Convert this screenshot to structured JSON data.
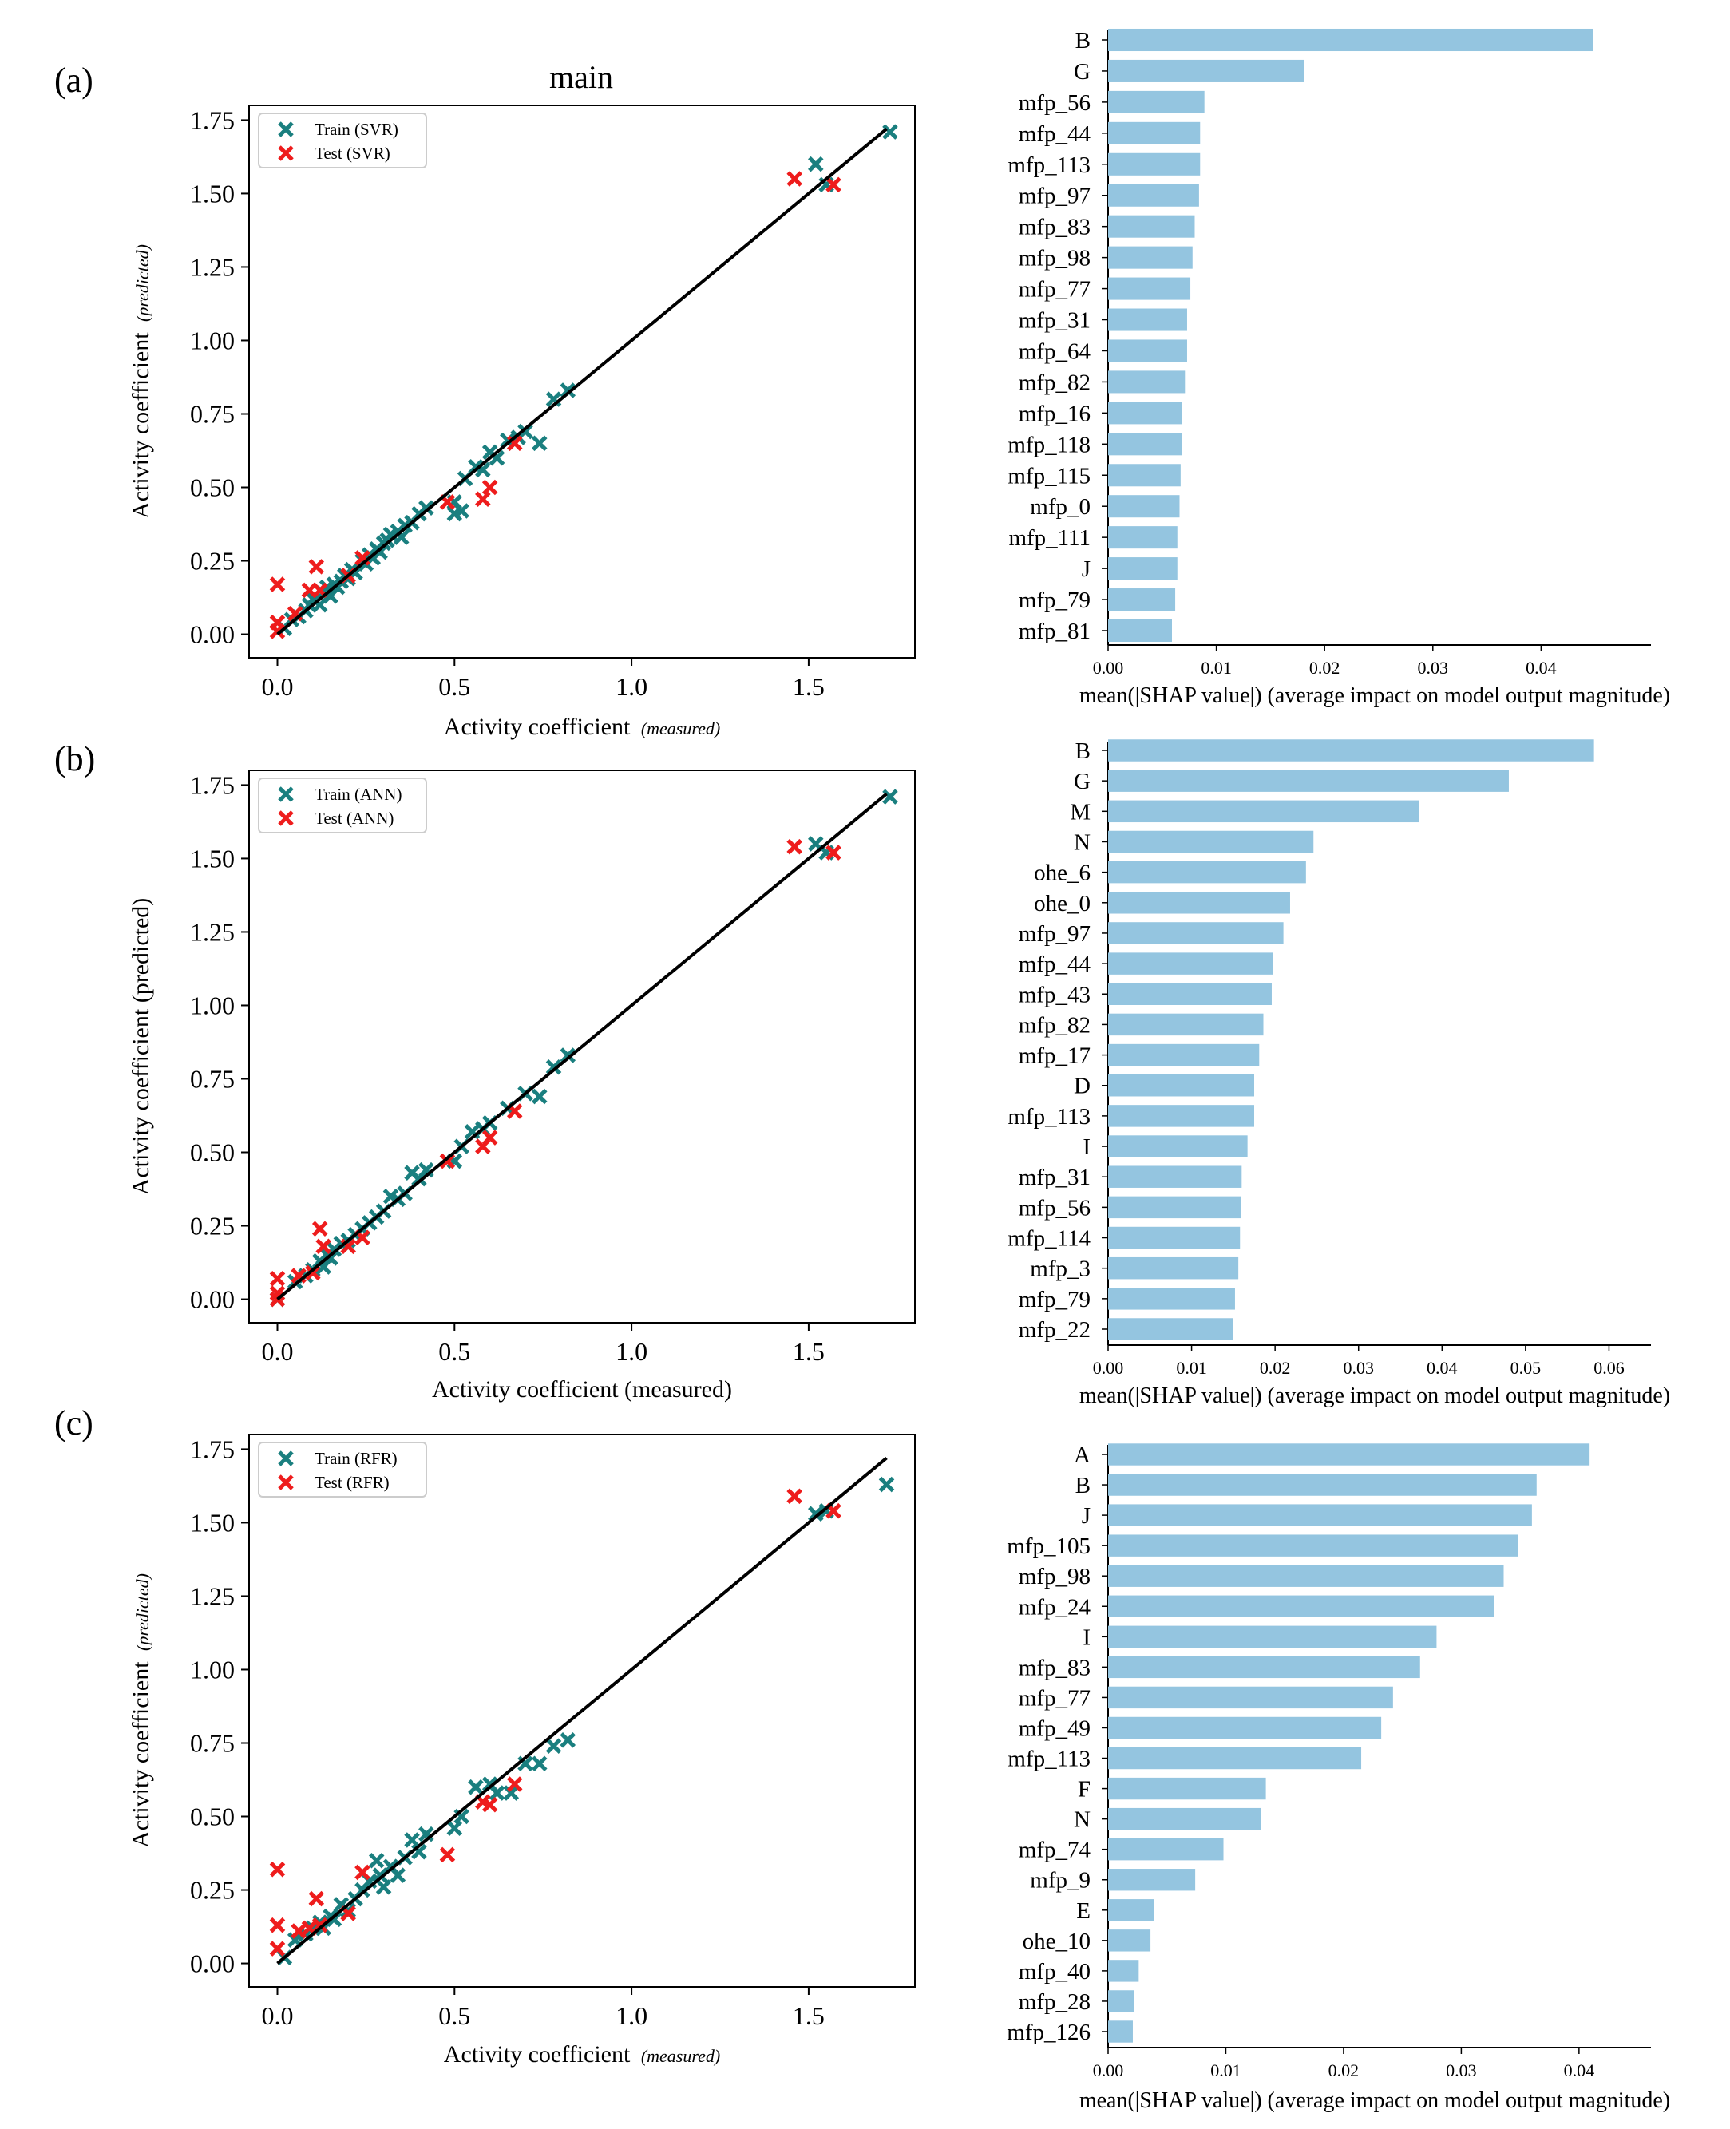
{
  "panel_labels": [
    "(a)",
    "(b)",
    "(c)"
  ],
  "colors": {
    "train": "#1a7f7f",
    "test": "#ee1c1c",
    "bar": "#94c5e0",
    "fit_line": "#000000"
  },
  "chart_data": [
    {
      "type": "scatter",
      "panel": "(a)",
      "title": "main",
      "xlabel": "Activity coefficient",
      "xlabel_sub": "(measured)",
      "ylabel": "Activity coefficient",
      "ylabel_sub": "(predicted)",
      "sub_italic": true,
      "xlim": [
        -0.08,
        1.8
      ],
      "ylim": [
        -0.08,
        1.8
      ],
      "xticks": [
        "0.0",
        "0.5",
        "1.0",
        "1.5"
      ],
      "yticks": [
        "0.00",
        "0.25",
        "0.50",
        "0.75",
        "1.00",
        "1.25",
        "1.50",
        "1.75"
      ],
      "legend_position": "top-left",
      "line": [
        [
          0,
          0
        ],
        [
          1.72,
          1.72
        ]
      ],
      "series": [
        {
          "name": "Train (SVR)",
          "role": "train",
          "points": [
            [
              0.02,
              0.02
            ],
            [
              0.04,
              0.05
            ],
            [
              0.06,
              0.06
            ],
            [
              0.08,
              0.08
            ],
            [
              0.09,
              0.1
            ],
            [
              0.1,
              0.12
            ],
            [
              0.12,
              0.1
            ],
            [
              0.13,
              0.14
            ],
            [
              0.14,
              0.16
            ],
            [
              0.15,
              0.13
            ],
            [
              0.16,
              0.17
            ],
            [
              0.17,
              0.16
            ],
            [
              0.18,
              0.18
            ],
            [
              0.19,
              0.2
            ],
            [
              0.2,
              0.19
            ],
            [
              0.21,
              0.22
            ],
            [
              0.22,
              0.21
            ],
            [
              0.24,
              0.25
            ],
            [
              0.25,
              0.24
            ],
            [
              0.26,
              0.27
            ],
            [
              0.27,
              0.26
            ],
            [
              0.28,
              0.29
            ],
            [
              0.29,
              0.28
            ],
            [
              0.3,
              0.31
            ],
            [
              0.31,
              0.32
            ],
            [
              0.32,
              0.34
            ],
            [
              0.34,
              0.35
            ],
            [
              0.35,
              0.33
            ],
            [
              0.36,
              0.37
            ],
            [
              0.38,
              0.38
            ],
            [
              0.4,
              0.41
            ],
            [
              0.42,
              0.43
            ],
            [
              0.5,
              0.41
            ],
            [
              0.52,
              0.42
            ],
            [
              0.5,
              0.45
            ],
            [
              0.53,
              0.53
            ],
            [
              0.56,
              0.57
            ],
            [
              0.58,
              0.56
            ],
            [
              0.6,
              0.62
            ],
            [
              0.62,
              0.6
            ],
            [
              0.65,
              0.66
            ],
            [
              0.68,
              0.67
            ],
            [
              0.7,
              0.69
            ],
            [
              0.74,
              0.65
            ],
            [
              0.78,
              0.8
            ],
            [
              0.82,
              0.83
            ],
            [
              1.52,
              1.6
            ],
            [
              1.55,
              1.53
            ],
            [
              1.73,
              1.71
            ]
          ]
        },
        {
          "name": "Test (SVR)",
          "role": "test",
          "points": [
            [
              0.0,
              0.17
            ],
            [
              0.0,
              0.04
            ],
            [
              0.0,
              0.01
            ],
            [
              0.05,
              0.07
            ],
            [
              0.09,
              0.15
            ],
            [
              0.11,
              0.23
            ],
            [
              0.12,
              0.15
            ],
            [
              0.2,
              0.2
            ],
            [
              0.24,
              0.26
            ],
            [
              0.48,
              0.45
            ],
            [
              0.58,
              0.46
            ],
            [
              0.6,
              0.5
            ],
            [
              0.67,
              0.65
            ],
            [
              1.46,
              1.55
            ],
            [
              1.57,
              1.53
            ]
          ]
        }
      ]
    },
    {
      "type": "bar",
      "orientation": "horizontal",
      "panel": "(a)",
      "categories": [
        "B",
        "G",
        "mfp_56",
        "mfp_44",
        "mfp_113",
        "mfp_97",
        "mfp_83",
        "mfp_98",
        "mfp_77",
        "mfp_31",
        "mfp_64",
        "mfp_82",
        "mfp_16",
        "mfp_118",
        "mfp_115",
        "mfp_0",
        "mfp_111",
        "J",
        "mfp_79",
        "mfp_81"
      ],
      "values": [
        0.0448,
        0.0181,
        0.0089,
        0.0085,
        0.0085,
        0.0084,
        0.008,
        0.0078,
        0.0076,
        0.0073,
        0.0073,
        0.0071,
        0.0068,
        0.0068,
        0.0067,
        0.0066,
        0.0064,
        0.0064,
        0.0062,
        0.0059
      ],
      "xlabel": "mean(|SHAP value|) (average impact on model output magnitude)",
      "xticks": [
        "0.00",
        "0.01",
        "0.02",
        "0.03",
        "0.04"
      ],
      "xlim": [
        0,
        0.0472
      ]
    },
    {
      "type": "scatter",
      "panel": "(b)",
      "title": "",
      "xlabel": "Activity coefficient (measured)",
      "xlabel_sub": "",
      "ylabel": "Activity coefficient (predicted)",
      "ylabel_sub": "",
      "sub_italic": false,
      "xlim": [
        -0.08,
        1.8
      ],
      "ylim": [
        -0.08,
        1.8
      ],
      "xticks": [
        "0.0",
        "0.5",
        "1.0",
        "1.5"
      ],
      "yticks": [
        "0.00",
        "0.25",
        "0.50",
        "0.75",
        "1.00",
        "1.25",
        "1.50",
        "1.75"
      ],
      "legend_position": "top-left",
      "line": [
        [
          0,
          0
        ],
        [
          1.72,
          1.72
        ]
      ],
      "series": [
        {
          "name": "Train (ANN)",
          "role": "train",
          "points": [
            [
              0.0,
              0.0
            ],
            [
              0.05,
              0.06
            ],
            [
              0.08,
              0.08
            ],
            [
              0.1,
              0.1
            ],
            [
              0.12,
              0.13
            ],
            [
              0.13,
              0.11
            ],
            [
              0.14,
              0.15
            ],
            [
              0.15,
              0.14
            ],
            [
              0.16,
              0.17
            ],
            [
              0.18,
              0.19
            ],
            [
              0.2,
              0.2
            ],
            [
              0.22,
              0.22
            ],
            [
              0.24,
              0.24
            ],
            [
              0.26,
              0.26
            ],
            [
              0.28,
              0.28
            ],
            [
              0.3,
              0.3
            ],
            [
              0.32,
              0.35
            ],
            [
              0.34,
              0.34
            ],
            [
              0.36,
              0.36
            ],
            [
              0.38,
              0.43
            ],
            [
              0.4,
              0.41
            ],
            [
              0.42,
              0.44
            ],
            [
              0.5,
              0.47
            ],
            [
              0.52,
              0.52
            ],
            [
              0.55,
              0.57
            ],
            [
              0.58,
              0.58
            ],
            [
              0.6,
              0.6
            ],
            [
              0.65,
              0.65
            ],
            [
              0.7,
              0.7
            ],
            [
              0.74,
              0.69
            ],
            [
              0.78,
              0.79
            ],
            [
              0.82,
              0.83
            ],
            [
              1.52,
              1.55
            ],
            [
              1.55,
              1.52
            ],
            [
              1.73,
              1.71
            ]
          ]
        },
        {
          "name": "Test (ANN)",
          "role": "test",
          "points": [
            [
              0.0,
              0.07
            ],
            [
              0.0,
              0.02
            ],
            [
              0.0,
              0.0
            ],
            [
              0.06,
              0.08
            ],
            [
              0.1,
              0.09
            ],
            [
              0.12,
              0.24
            ],
            [
              0.13,
              0.18
            ],
            [
              0.2,
              0.18
            ],
            [
              0.24,
              0.21
            ],
            [
              0.48,
              0.47
            ],
            [
              0.58,
              0.52
            ],
            [
              0.6,
              0.55
            ],
            [
              0.67,
              0.64
            ],
            [
              1.46,
              1.54
            ],
            [
              1.57,
              1.52
            ]
          ]
        }
      ]
    },
    {
      "type": "bar",
      "orientation": "horizontal",
      "panel": "(b)",
      "categories": [
        "B",
        "G",
        "M",
        "N",
        "ohe_6",
        "ohe_0",
        "mfp_97",
        "mfp_44",
        "mfp_43",
        "mfp_82",
        "mfp_17",
        "D",
        "mfp_113",
        "I",
        "mfp_31",
        "mfp_56",
        "mfp_114",
        "mfp_3",
        "mfp_79",
        "mfp_22"
      ],
      "values": [
        0.0582,
        0.048,
        0.0372,
        0.0246,
        0.0237,
        0.0218,
        0.021,
        0.0197,
        0.0196,
        0.0186,
        0.0181,
        0.0175,
        0.0175,
        0.0167,
        0.016,
        0.0159,
        0.0158,
        0.0156,
        0.0152,
        0.015
      ],
      "xlabel": "mean(|SHAP value|) (average impact on model output magnitude)",
      "xticks": [
        "0.00",
        "0.01",
        "0.02",
        "0.03",
        "0.04",
        "0.05",
        "0.06"
      ],
      "xlim": [
        0,
        0.0612
      ]
    },
    {
      "type": "scatter",
      "panel": "(c)",
      "title": "",
      "xlabel": "Activity coefficient",
      "xlabel_sub": "(measured)",
      "ylabel": "Activity coefficient",
      "ylabel_sub": "(predicted)",
      "sub_italic": true,
      "xlim": [
        -0.08,
        1.8
      ],
      "ylim": [
        -0.08,
        1.8
      ],
      "xticks": [
        "0.0",
        "0.5",
        "1.0",
        "1.5"
      ],
      "yticks": [
        "0.00",
        "0.25",
        "0.50",
        "0.75",
        "1.00",
        "1.25",
        "1.50",
        "1.75"
      ],
      "legend_position": "top-left",
      "line": [
        [
          0,
          0
        ],
        [
          1.72,
          1.72
        ]
      ],
      "series": [
        {
          "name": "Train (RFR)",
          "role": "train",
          "points": [
            [
              0.02,
              0.02
            ],
            [
              0.05,
              0.08
            ],
            [
              0.08,
              0.1
            ],
            [
              0.1,
              0.12
            ],
            [
              0.12,
              0.14
            ],
            [
              0.13,
              0.12
            ],
            [
              0.15,
              0.16
            ],
            [
              0.16,
              0.15
            ],
            [
              0.18,
              0.2
            ],
            [
              0.2,
              0.18
            ],
            [
              0.22,
              0.22
            ],
            [
              0.24,
              0.25
            ],
            [
              0.26,
              0.28
            ],
            [
              0.28,
              0.35
            ],
            [
              0.29,
              0.3
            ],
            [
              0.3,
              0.26
            ],
            [
              0.32,
              0.33
            ],
            [
              0.34,
              0.3
            ],
            [
              0.36,
              0.36
            ],
            [
              0.38,
              0.42
            ],
            [
              0.4,
              0.38
            ],
            [
              0.42,
              0.44
            ],
            [
              0.5,
              0.46
            ],
            [
              0.52,
              0.5
            ],
            [
              0.56,
              0.6
            ],
            [
              0.6,
              0.61
            ],
            [
              0.62,
              0.58
            ],
            [
              0.66,
              0.58
            ],
            [
              0.7,
              0.68
            ],
            [
              0.74,
              0.68
            ],
            [
              0.78,
              0.74
            ],
            [
              0.82,
              0.76
            ],
            [
              1.52,
              1.53
            ],
            [
              1.55,
              1.54
            ],
            [
              1.72,
              1.63
            ]
          ]
        },
        {
          "name": "Test (RFR)",
          "role": "test",
          "points": [
            [
              0.0,
              0.32
            ],
            [
              0.0,
              0.13
            ],
            [
              0.0,
              0.05
            ],
            [
              0.06,
              0.11
            ],
            [
              0.09,
              0.12
            ],
            [
              0.11,
              0.22
            ],
            [
              0.12,
              0.13
            ],
            [
              0.2,
              0.17
            ],
            [
              0.24,
              0.31
            ],
            [
              0.48,
              0.37
            ],
            [
              0.58,
              0.55
            ],
            [
              0.6,
              0.54
            ],
            [
              0.67,
              0.61
            ],
            [
              1.46,
              1.59
            ],
            [
              1.57,
              1.54
            ]
          ]
        }
      ]
    },
    {
      "type": "bar",
      "orientation": "horizontal",
      "panel": "(c)",
      "categories": [
        "A",
        "B",
        "J",
        "mfp_105",
        "mfp_98",
        "mfp_24",
        "I",
        "mfp_83",
        "mfp_77",
        "mfp_49",
        "mfp_113",
        "F",
        "N",
        "mfp_74",
        "mfp_9",
        "E",
        "ohe_10",
        "mfp_40",
        "mfp_28",
        "mfp_126"
      ],
      "values": [
        0.0409,
        0.0364,
        0.036,
        0.0348,
        0.0336,
        0.0328,
        0.0279,
        0.0265,
        0.0242,
        0.0232,
        0.0215,
        0.0134,
        0.013,
        0.0098,
        0.0074,
        0.0039,
        0.0036,
        0.0026,
        0.0022,
        0.0021
      ],
      "xlabel": "mean(|SHAP value|) (average impact on model output magnitude)",
      "xticks": [
        "0.00",
        "0.01",
        "0.02",
        "0.03",
        "0.04"
      ],
      "xlim": [
        0,
        0.0434
      ]
    }
  ]
}
